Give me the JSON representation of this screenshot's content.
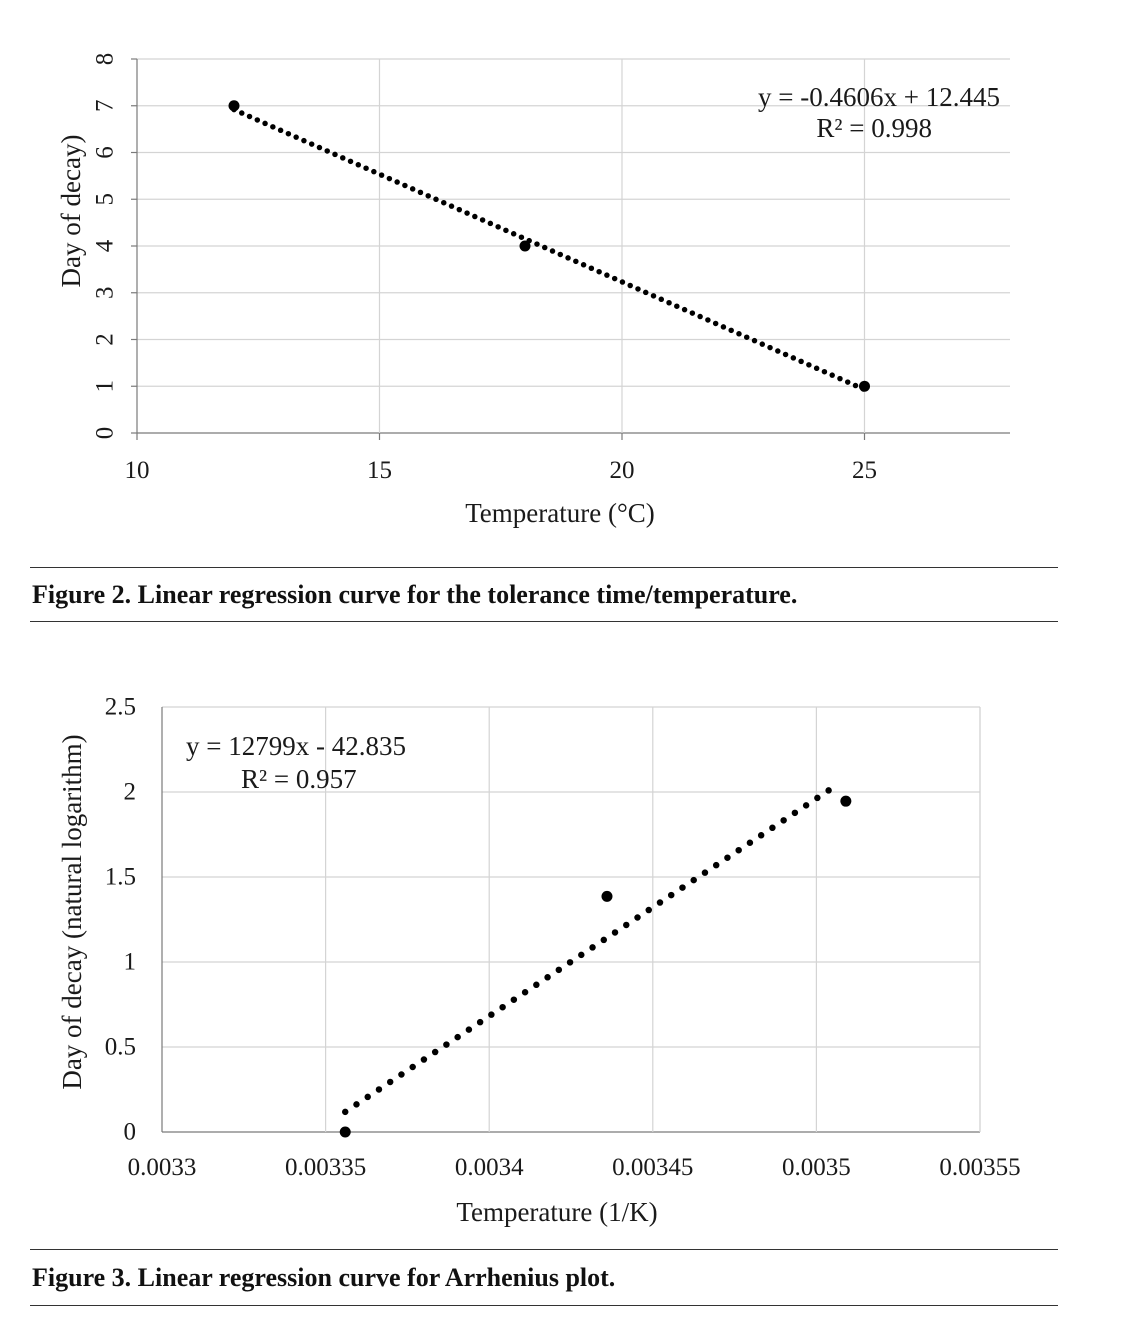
{
  "chart_data": [
    {
      "type": "scatter",
      "title": "",
      "xlabel": "Temperature (°C)",
      "ylabel": "Day of decay)",
      "xlim": [
        10,
        28
      ],
      "ylim": [
        0,
        8
      ],
      "x_ticks": [
        10,
        15,
        20,
        25
      ],
      "y_ticks": [
        0,
        1,
        2,
        3,
        4,
        5,
        6,
        7,
        8
      ],
      "grid": true,
      "series": [
        {
          "name": "Day of decay",
          "x": [
            12,
            18,
            25
          ],
          "y": [
            7,
            4,
            1
          ]
        }
      ],
      "trendline": {
        "kind": "linear",
        "slope": -0.4606,
        "intercept": 12.445,
        "x_range": [
          12,
          25
        ],
        "style": "dotted"
      },
      "equation": "y = -0.4606x + 12.445",
      "r2": "R² = 0.998",
      "caption": "Figure 2. Linear regression curve for the tolerance time/temperature."
    },
    {
      "type": "scatter",
      "title": "",
      "xlabel": "Temperature (1/K)",
      "ylabel": "Day of decay (natural logarithm)",
      "xlim": [
        0.0033,
        0.00355
      ],
      "ylim": [
        0,
        2.5
      ],
      "x_ticks": [
        "0.0033",
        "0.00335",
        "0.0034",
        "0.00345",
        "0.0035",
        "0.00355"
      ],
      "y_ticks": [
        "0",
        "0.5",
        "1",
        "1.5",
        "2",
        "2.5"
      ],
      "grid": true,
      "series": [
        {
          "name": "ln(day of decay)",
          "x": [
            0.003356,
            0.003436,
            0.003509
          ],
          "y": [
            0,
            1.386,
            1.946
          ]
        }
      ],
      "trendline": {
        "kind": "linear",
        "slope": 12799,
        "intercept": -42.835,
        "x_range": [
          0.003356,
          0.003506
        ],
        "style": "dotted"
      },
      "equation": "y = 12799x - 42.835",
      "r2": "R² = 0.957",
      "caption": "Figure 3. Linear regression curve for Arrhenius plot."
    }
  ]
}
